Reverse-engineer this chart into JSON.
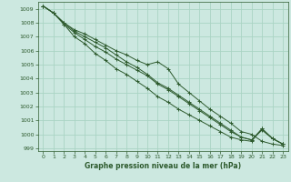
{
  "title": "Graphe pression niveau de la mer (hPa)",
  "bg_color": "#cce8e0",
  "grid_color": "#aad4c4",
  "line_color": "#2d5a2d",
  "xlim": [
    -0.5,
    23.5
  ],
  "ylim": [
    998.8,
    1009.5
  ],
  "yticks": [
    999,
    1000,
    1001,
    1002,
    1003,
    1004,
    1005,
    1006,
    1007,
    1008,
    1009
  ],
  "xticks": [
    0,
    1,
    2,
    3,
    4,
    5,
    6,
    7,
    8,
    9,
    10,
    11,
    12,
    13,
    14,
    15,
    16,
    17,
    18,
    19,
    20,
    21,
    22,
    23
  ],
  "series": [
    [
      1009.2,
      1008.7,
      1008.0,
      1007.5,
      1007.2,
      1006.8,
      1006.4,
      1006.0,
      1005.7,
      1005.3,
      1005.0,
      1005.2,
      1004.7,
      1003.6,
      1003.0,
      1002.4,
      1001.8,
      1001.3,
      1000.8,
      1000.2,
      1000.0,
      999.5,
      999.3,
      999.2
    ],
    [
      1009.2,
      1008.7,
      1008.0,
      1007.4,
      1007.0,
      1006.6,
      1006.2,
      1005.7,
      1005.2,
      1004.8,
      1004.3,
      1003.7,
      1003.3,
      1002.8,
      1002.3,
      1001.8,
      1001.3,
      1000.8,
      1000.3,
      999.8,
      999.6,
      1000.4,
      999.7,
      999.3
    ],
    [
      1009.2,
      1008.7,
      1007.9,
      1007.3,
      1006.8,
      1006.3,
      1005.9,
      1005.4,
      1005.0,
      1004.6,
      1004.2,
      1003.6,
      1003.2,
      1002.7,
      1002.2,
      1001.7,
      1001.2,
      1000.7,
      1000.2,
      999.8,
      999.6,
      1000.3,
      999.7,
      999.3
    ],
    [
      1009.2,
      1008.7,
      1007.9,
      1007.0,
      1006.5,
      1005.8,
      1005.3,
      1004.7,
      1004.3,
      1003.8,
      1003.3,
      1002.7,
      1002.3,
      1001.8,
      1001.4,
      1001.0,
      1000.6,
      1000.2,
      999.8,
      999.6,
      999.5,
      1000.4,
      999.7,
      999.3
    ]
  ]
}
